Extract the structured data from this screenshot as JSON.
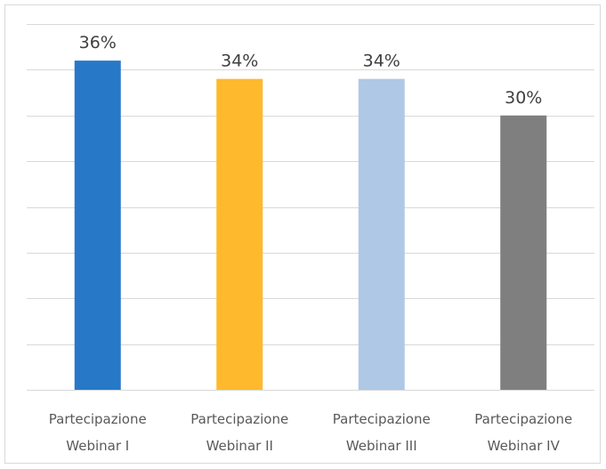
{
  "chart_data": {
    "type": "bar",
    "title": "",
    "xlabel": "",
    "ylabel": "",
    "categories": [
      [
        "Partecipazione",
        "Webinar I"
      ],
      [
        "Partecipazione",
        "Webinar II"
      ],
      [
        "Partecipazione",
        "Webinar III"
      ],
      [
        "Partecipazione",
        "Webinar IV"
      ]
    ],
    "values": [
      36,
      34,
      34,
      30
    ],
    "value_labels": [
      "36%",
      "34%",
      "34%",
      "30%"
    ],
    "colors": [
      "#2878c8",
      "#ffb92d",
      "#afc8e6",
      "#7f7f7f"
    ],
    "ylim": [
      0,
      40
    ],
    "grid": true
  }
}
